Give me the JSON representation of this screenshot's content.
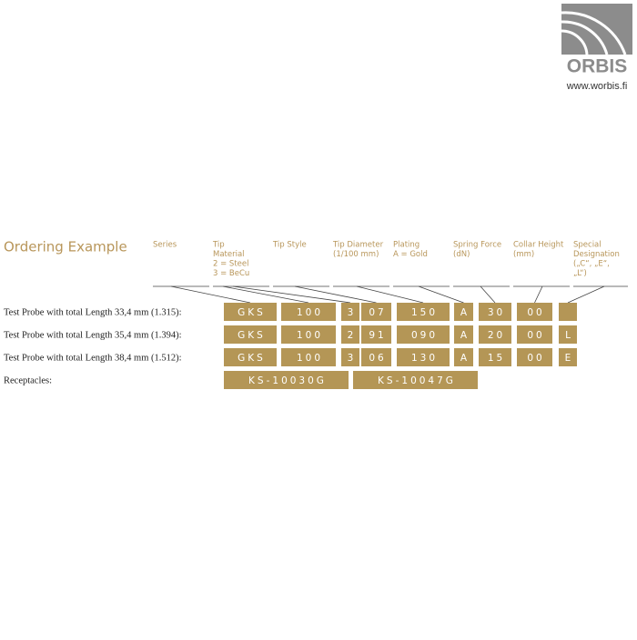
{
  "logo": {
    "name": "ORBIS",
    "url": "www.worbis.fi"
  },
  "title": "Ordering Example",
  "headers": [
    [
      "Series"
    ],
    [
      "Tip",
      "Material",
      "2 = Steel",
      "3 = BeCu"
    ],
    [
      "Tip Style"
    ],
    [
      "Tip Diameter",
      "(1/100 mm)"
    ],
    [
      "Plating",
      "A = Gold"
    ],
    [
      "Spring Force",
      "(dN)"
    ],
    [
      "Collar Height",
      "(mm)"
    ],
    [
      "Special",
      "Designation",
      "(„C“, „E“,",
      "„L“)"
    ]
  ],
  "rows": [
    {
      "label": "Test Probe with total Length 33,4 mm (1.315):",
      "cells": [
        "GKS",
        "100",
        "3",
        "07",
        "150",
        "A",
        "30",
        "00"
      ]
    },
    {
      "label": "Test Probe with total Length 35,4 mm (1.394):",
      "cells": [
        "GKS",
        "100",
        "2",
        "91",
        "090",
        "A",
        "20",
        "00",
        "L"
      ]
    },
    {
      "label": "Test Probe with total Length 38,4 mm (1.512):",
      "cells": [
        "GKS",
        "100",
        "3",
        "06",
        "130",
        "A",
        "15",
        "00",
        "E"
      ]
    }
  ],
  "receptacles": {
    "label": "Receptacles:",
    "cells": [
      "KS-10030G",
      "KS-10047G"
    ]
  }
}
